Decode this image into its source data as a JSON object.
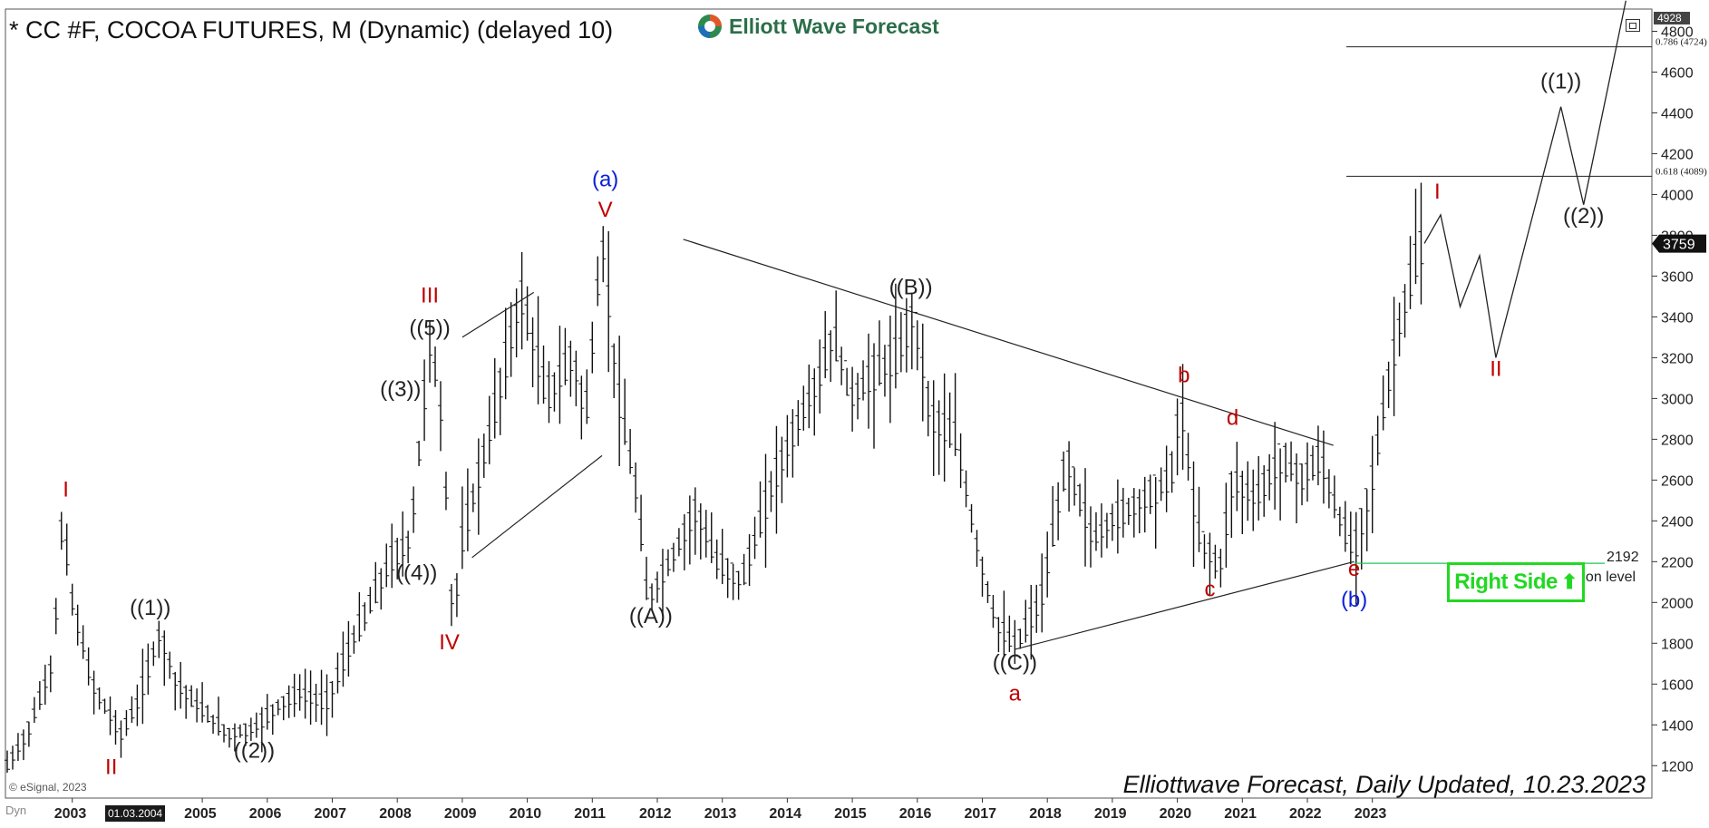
{
  "title": "* CC #F, COCOA FUTURES, M (Dynamic) (delayed 10)",
  "logo_text": "Elliott Wave Forecast",
  "footer": "Elliottwave Forecast, Daily Updated, 10.23.2023",
  "esignal": "© eSignal, 2023",
  "dyn_label": "Dyn",
  "date_badge": "01.03.2004",
  "right_side_label": "Right Side",
  "chart_data": {
    "type": "ohlc",
    "ylim": [
      1050,
      4900
    ],
    "y_ticks": [
      1200,
      1400,
      1600,
      1800,
      2000,
      2200,
      2400,
      2600,
      2800,
      3000,
      3200,
      3400,
      3600,
      3800,
      4000,
      4200,
      4400,
      4600,
      4800
    ],
    "x_ticks": [
      "2003",
      "2005",
      "2006",
      "2007",
      "2008",
      "2009",
      "2010",
      "2011",
      "2012",
      "2013",
      "2014",
      "2015",
      "2016",
      "2017",
      "2018",
      "2019",
      "2020",
      "2021",
      "2022",
      "2023"
    ],
    "top_price": "4928",
    "current_price": "3759",
    "current_value": 3759,
    "price_path": [
      [
        2002.0,
        1200
      ],
      [
        2002.3,
        1350
      ],
      [
        2002.7,
        1700
      ],
      [
        2002.85,
        2420
      ],
      [
        2003.0,
        2000
      ],
      [
        2003.3,
        1600
      ],
      [
        2003.75,
        1350
      ],
      [
        2004.0,
        1500
      ],
      [
        2004.2,
        1700
      ],
      [
        2004.35,
        1850
      ],
      [
        2004.6,
        1600
      ],
      [
        2004.9,
        1500
      ],
      [
        2005.4,
        1350
      ],
      [
        2005.8,
        1380
      ],
      [
        2006.2,
        1500
      ],
      [
        2006.5,
        1550
      ],
      [
        2006.9,
        1500
      ],
      [
        2007.3,
        1800
      ],
      [
        2007.6,
        2000
      ],
      [
        2007.9,
        2200
      ],
      [
        2008.2,
        2300
      ],
      [
        2008.4,
        2950
      ],
      [
        2008.5,
        3280
      ],
      [
        2008.65,
        3000
      ],
      [
        2008.8,
        2300
      ],
      [
        2008.85,
        1880
      ],
      [
        2009.0,
        2300
      ],
      [
        2009.4,
        2800
      ],
      [
        2009.9,
        3500
      ],
      [
        2010.3,
        3000
      ],
      [
        2010.7,
        3200
      ],
      [
        2010.9,
        2900
      ],
      [
        2011.15,
        3770
      ],
      [
        2011.4,
        3000
      ],
      [
        2011.7,
        2500
      ],
      [
        2011.85,
        2000
      ],
      [
        2012.2,
        2200
      ],
      [
        2012.6,
        2450
      ],
      [
        2012.9,
        2200
      ],
      [
        2013.3,
        2100
      ],
      [
        2013.8,
        2600
      ],
      [
        2014.2,
        2900
      ],
      [
        2014.5,
        3100
      ],
      [
        2014.7,
        3300
      ],
      [
        2015.0,
        3000
      ],
      [
        2015.3,
        3100
      ],
      [
        2015.7,
        3200
      ],
      [
        2015.95,
        3420
      ],
      [
        2016.2,
        2900
      ],
      [
        2016.6,
        2800
      ],
      [
        2016.9,
        2300
      ],
      [
        2017.2,
        1900
      ],
      [
        2017.5,
        1780
      ],
      [
        2017.9,
        2000
      ],
      [
        2018.3,
        2700
      ],
      [
        2018.7,
        2300
      ],
      [
        2019.0,
        2400
      ],
      [
        2019.5,
        2500
      ],
      [
        2019.9,
        2600
      ],
      [
        2020.05,
        2980
      ],
      [
        2020.3,
        2350
      ],
      [
        2020.65,
        2150
      ],
      [
        2020.85,
        2600
      ],
      [
        2021.2,
        2500
      ],
      [
        2021.6,
        2700
      ],
      [
        2021.9,
        2600
      ],
      [
        2022.2,
        2700
      ],
      [
        2022.5,
        2400
      ],
      [
        2022.72,
        2240
      ],
      [
        2023.0,
        2600
      ],
      [
        2023.2,
        3000
      ],
      [
        2023.45,
        3400
      ],
      [
        2023.65,
        3650
      ],
      [
        2023.8,
        3760
      ]
    ],
    "projection": [
      [
        2023.8,
        3760
      ],
      [
        2024.05,
        3900
      ],
      [
        2024.35,
        3450
      ],
      [
        2024.65,
        3700
      ],
      [
        2024.9,
        3200
      ],
      [
        2025.9,
        4430
      ],
      [
        2026.25,
        3950
      ],
      [
        2026.9,
        4950
      ]
    ],
    "trendlines": [
      [
        [
          2009.0,
          3300
        ],
        [
          2010.1,
          3520
        ]
      ],
      [
        [
          2009.15,
          2220
        ],
        [
          2011.15,
          2720
        ]
      ],
      [
        [
          2012.4,
          3780
        ],
        [
          2022.4,
          2770
        ]
      ],
      [
        [
          2017.5,
          1770
        ],
        [
          2022.72,
          2200
        ]
      ]
    ],
    "fib_levels": [
      {
        "label": "0.786 (4724)",
        "value": 4724
      },
      {
        "label": "0.618 (4089)",
        "value": 4089
      }
    ],
    "invalidation": {
      "value": 2192,
      "label": "Invalidation level",
      "value_label": "2192"
    },
    "wave_labels": [
      {
        "text": "I",
        "x": 2002.9,
        "y": 2520,
        "color": "#c00000"
      },
      {
        "text": "II",
        "x": 2003.6,
        "y": 1160,
        "color": "#c00000"
      },
      {
        "text": "((1))",
        "x": 2004.2,
        "y": 1940,
        "color": "#222222"
      },
      {
        "text": "((2))",
        "x": 2005.8,
        "y": 1240,
        "color": "#222222"
      },
      {
        "text": "((3))",
        "x": 2008.05,
        "y": 3010,
        "color": "#222222"
      },
      {
        "text": "((4))",
        "x": 2008.3,
        "y": 2110,
        "color": "#222222"
      },
      {
        "text": "((5))",
        "x": 2008.5,
        "y": 3310,
        "color": "#222222"
      },
      {
        "text": "III",
        "x": 2008.5,
        "y": 3470,
        "color": "#c00000"
      },
      {
        "text": "IV",
        "x": 2008.8,
        "y": 1770,
        "color": "#c00000"
      },
      {
        "text": "V",
        "x": 2011.2,
        "y": 3890,
        "color": "#c00000"
      },
      {
        "text": "(a)",
        "x": 2011.2,
        "y": 4040,
        "color": "#0b1fd8"
      },
      {
        "text": "((A))",
        "x": 2011.9,
        "y": 1900,
        "color": "#222222"
      },
      {
        "text": "((B))",
        "x": 2015.9,
        "y": 3510,
        "color": "#222222"
      },
      {
        "text": "((C))",
        "x": 2017.5,
        "y": 1670,
        "color": "#222222"
      },
      {
        "text": "a",
        "x": 2017.5,
        "y": 1520,
        "color": "#c00000"
      },
      {
        "text": "b",
        "x": 2020.1,
        "y": 3080,
        "color": "#c00000"
      },
      {
        "text": "c",
        "x": 2020.5,
        "y": 2030,
        "color": "#c00000"
      },
      {
        "text": "d",
        "x": 2020.85,
        "y": 2870,
        "color": "#c00000"
      },
      {
        "text": "e",
        "x": 2022.72,
        "y": 2130,
        "color": "#c00000"
      },
      {
        "text": "(b)",
        "x": 2022.72,
        "y": 1980,
        "color": "#0b1fd8"
      },
      {
        "text": "I",
        "x": 2024.0,
        "y": 3980,
        "color": "#c00000"
      },
      {
        "text": "II",
        "x": 2024.9,
        "y": 3110,
        "color": "#c00000"
      },
      {
        "text": "((1))",
        "x": 2025.9,
        "y": 4520,
        "color": "#222222"
      },
      {
        "text": "((2))",
        "x": 2026.25,
        "y": 3860,
        "color": "#222222"
      }
    ]
  }
}
